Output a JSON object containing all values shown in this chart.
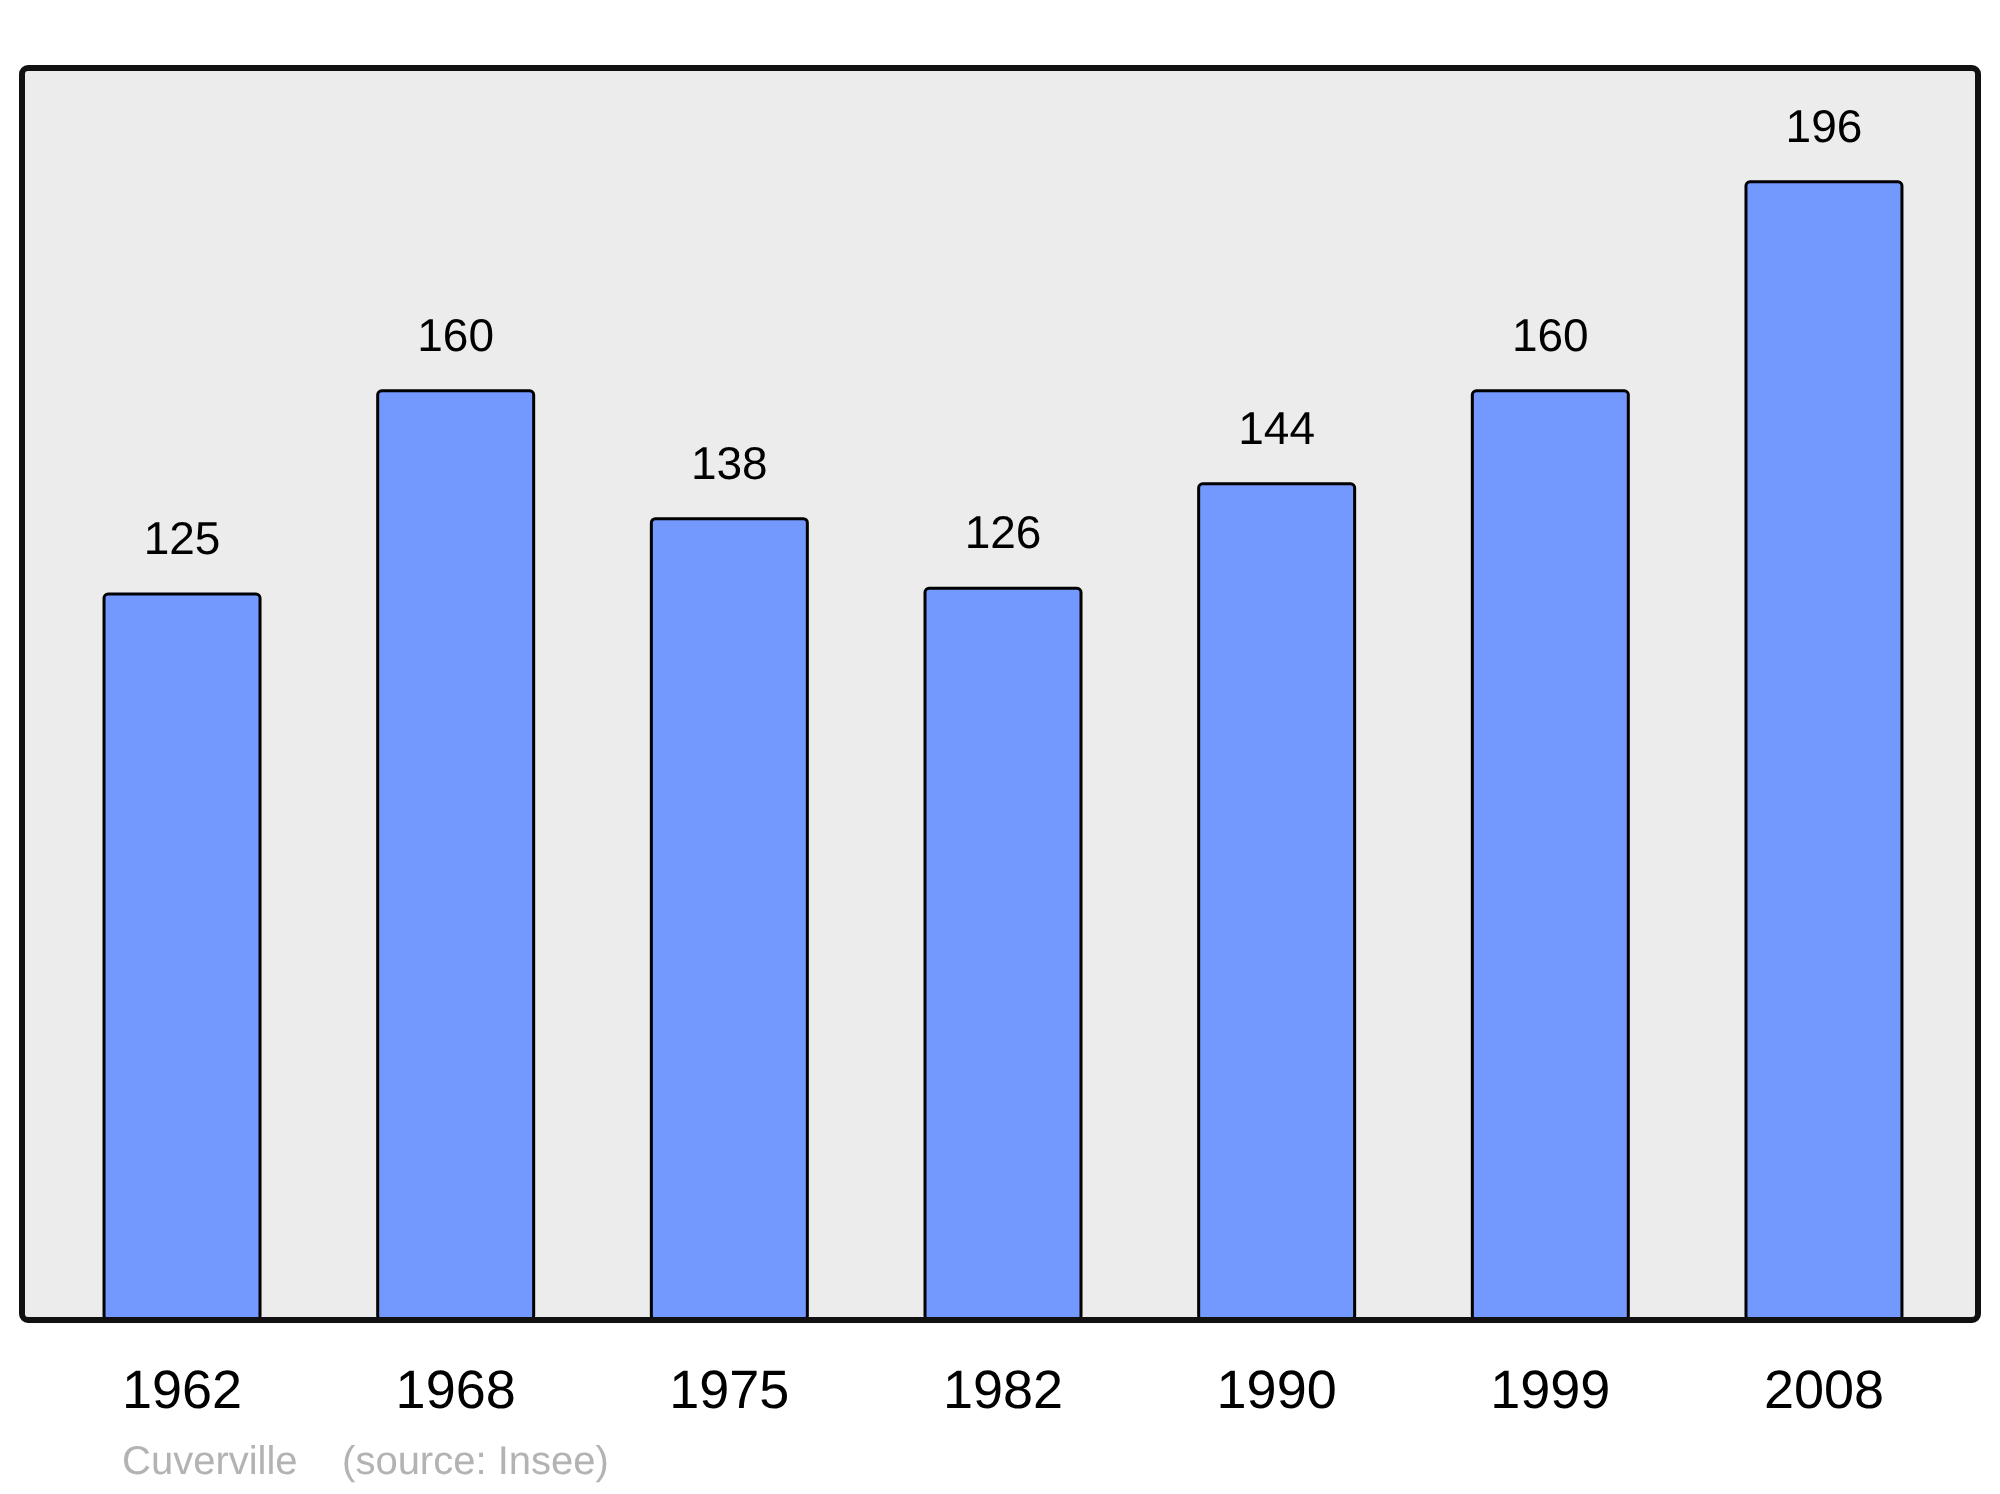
{
  "chart_data": {
    "type": "bar",
    "categories": [
      "1962",
      "1968",
      "1975",
      "1982",
      "1990",
      "1999",
      "2008"
    ],
    "values": [
      125,
      160,
      138,
      126,
      144,
      160,
      196
    ],
    "color": "#7399ff",
    "data_labels": true,
    "annotations": [
      "Cuverville    (source: Insee)"
    ]
  }
}
